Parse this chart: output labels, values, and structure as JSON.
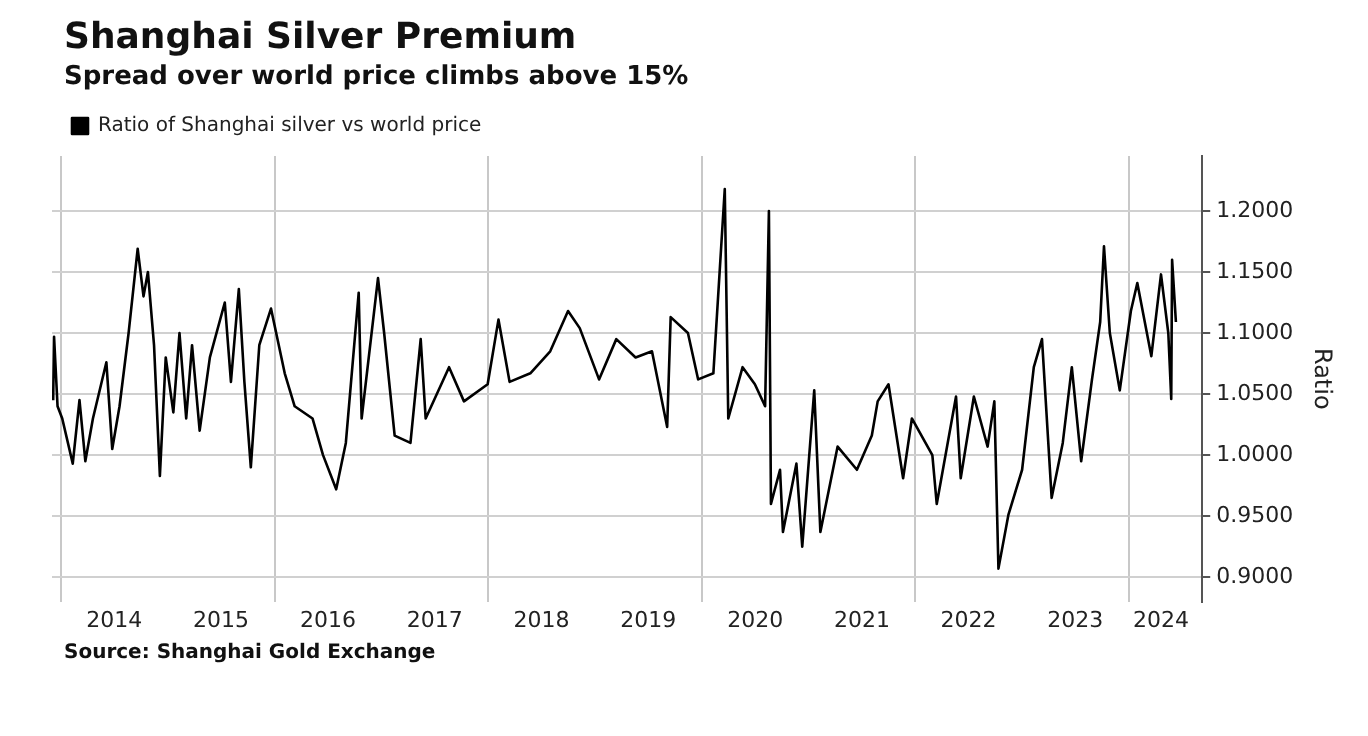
{
  "chart_data": {
    "type": "line",
    "title": "Shanghai Silver Premium",
    "subtitle": "Spread over world price climbs above 15%",
    "ylabel": "Ratio",
    "annotations": [
      "Source: Shanghai Gold Exchange"
    ],
    "x": [
      "2013-12-05",
      "2013-12-08",
      "2013-12-20",
      "2014-01-05",
      "2014-02-10",
      "2014-03-05",
      "2014-03-25",
      "2014-04-20",
      "2014-06-05",
      "2014-06-25",
      "2014-07-20",
      "2014-08-20",
      "2014-09-20",
      "2014-10-10",
      "2014-10-25",
      "2014-11-15",
      "2014-12-05",
      "2014-12-25",
      "2015-01-20",
      "2015-02-10",
      "2015-03-05",
      "2015-03-25",
      "2015-04-20",
      "2015-05-25",
      "2015-07-15",
      "2015-08-05",
      "2015-09-01",
      "2015-09-20",
      "2015-10-12",
      "2015-11-10",
      "2015-12-20",
      "2016-02-05",
      "2016-03-10",
      "2016-05-10",
      "2016-06-15",
      "2016-07-30",
      "2016-09-01",
      "2016-10-15",
      "2016-10-25",
      "2016-12-20",
      "2017-01-10",
      "2017-02-15",
      "2017-04-10",
      "2017-05-15",
      "2017-06-01",
      "2017-08-20",
      "2017-10-10",
      "2017-12-30",
      "2018-02-05",
      "2018-03-15",
      "2018-05-25",
      "2018-08-01",
      "2018-10-01",
      "2018-11-10",
      "2019-01-15",
      "2019-03-15",
      "2019-05-20",
      "2019-07-15",
      "2019-09-05",
      "2019-09-17",
      "2019-11-15",
      "2019-12-20",
      "2020-02-10",
      "2020-03-20",
      "2020-04-01",
      "2020-05-20",
      "2020-07-01",
      "2020-08-05",
      "2020-08-18",
      "2020-08-25",
      "2020-09-25",
      "2020-10-05",
      "2020-11-20",
      "2020-12-10",
      "2021-01-20",
      "2021-02-10",
      "2021-04-10",
      "2021-06-15",
      "2021-08-05",
      "2021-08-25",
      "2021-10-01",
      "2021-11-20",
      "2021-12-20",
      "2022-02-28",
      "2022-03-15",
      "2022-05-20",
      "2022-06-05",
      "2022-07-20",
      "2022-09-05",
      "2022-09-28",
      "2022-10-12",
      "2022-11-15",
      "2023-01-01",
      "2023-02-10",
      "2023-03-10",
      "2023-04-12",
      "2023-05-20",
      "2023-06-20",
      "2023-07-22",
      "2023-08-28",
      "2023-09-25",
      "2023-10-08",
      "2023-10-28",
      "2023-12-01",
      "2024-01-08",
      "2024-01-30",
      "2024-03-18",
      "2024-04-20",
      "2024-05-15",
      "2024-05-25",
      "2024-05-28",
      "2024-06-10"
    ],
    "series": [
      {
        "name": "Ratio of Shanghai silver vs world price",
        "color": "#000000",
        "values": [
          1.045,
          1.097,
          1.04,
          1.03,
          0.993,
          1.045,
          0.995,
          1.03,
          1.076,
          1.005,
          1.04,
          1.1,
          1.169,
          1.13,
          1.15,
          1.09,
          0.983,
          1.08,
          1.035,
          1.1,
          1.03,
          1.09,
          1.02,
          1.08,
          1.125,
          1.06,
          1.136,
          1.06,
          0.99,
          1.09,
          1.12,
          1.067,
          1.04,
          1.03,
          1.0,
          0.972,
          1.01,
          1.133,
          1.03,
          1.145,
          1.1,
          1.016,
          1.01,
          1.095,
          1.03,
          1.072,
          1.044,
          1.058,
          1.111,
          1.06,
          1.067,
          1.085,
          1.118,
          1.104,
          1.062,
          1.095,
          1.08,
          1.085,
          1.023,
          1.113,
          1.1,
          1.062,
          1.067,
          1.218,
          1.03,
          1.072,
          1.058,
          1.04,
          1.2,
          0.96,
          0.988,
          0.937,
          0.993,
          0.925,
          1.053,
          0.937,
          1.007,
          0.988,
          1.016,
          1.044,
          1.058,
          0.981,
          1.03,
          1.0,
          0.96,
          1.048,
          0.981,
          1.048,
          1.007,
          1.044,
          0.907,
          0.951,
          0.988,
          1.072,
          1.095,
          0.965,
          1.01,
          1.072,
          0.995,
          1.062,
          1.109,
          1.171,
          1.1,
          1.053,
          1.118,
          1.141,
          1.081,
          1.148,
          1.1,
          1.046,
          1.16,
          1.109
        ]
      }
    ],
    "xlim": [
      "2013-12-01",
      "2024-09-08"
    ],
    "xticks": [
      {
        "value": "2014-01-01",
        "label": null
      },
      {
        "value": "2014-07-02",
        "label": "2014"
      },
      {
        "value": "2015-07-02",
        "label": "2015"
      },
      {
        "value": "2016-01-01",
        "label": null
      },
      {
        "value": "2016-07-02",
        "label": "2016"
      },
      {
        "value": "2017-07-02",
        "label": "2017"
      },
      {
        "value": "2018-01-01",
        "label": null
      },
      {
        "value": "2018-07-02",
        "label": "2018"
      },
      {
        "value": "2019-07-02",
        "label": "2019"
      },
      {
        "value": "2020-01-01",
        "label": null
      },
      {
        "value": "2020-07-02",
        "label": "2020"
      },
      {
        "value": "2021-07-02",
        "label": "2021"
      },
      {
        "value": "2022-01-01",
        "label": null
      },
      {
        "value": "2022-07-02",
        "label": "2022"
      },
      {
        "value": "2023-07-02",
        "label": "2023"
      },
      {
        "value": "2024-01-01",
        "label": null
      },
      {
        "value": "2024-04-20",
        "label": "2024"
      }
    ],
    "ylim": [
      0.88,
      1.245
    ],
    "yticks": [
      {
        "value": 0.9,
        "label": "0.9000"
      },
      {
        "value": 0.95,
        "label": "0.9500"
      },
      {
        "value": 1.0,
        "label": "1.0000"
      },
      {
        "value": 1.05,
        "label": "1.0500"
      },
      {
        "value": 1.1,
        "label": "1.1000"
      },
      {
        "value": 1.15,
        "label": "1.1500"
      },
      {
        "value": 1.2,
        "label": "1.2000"
      }
    ],
    "grid": true,
    "legend": "top left",
    "marker": "none",
    "line_style": "solid"
  }
}
